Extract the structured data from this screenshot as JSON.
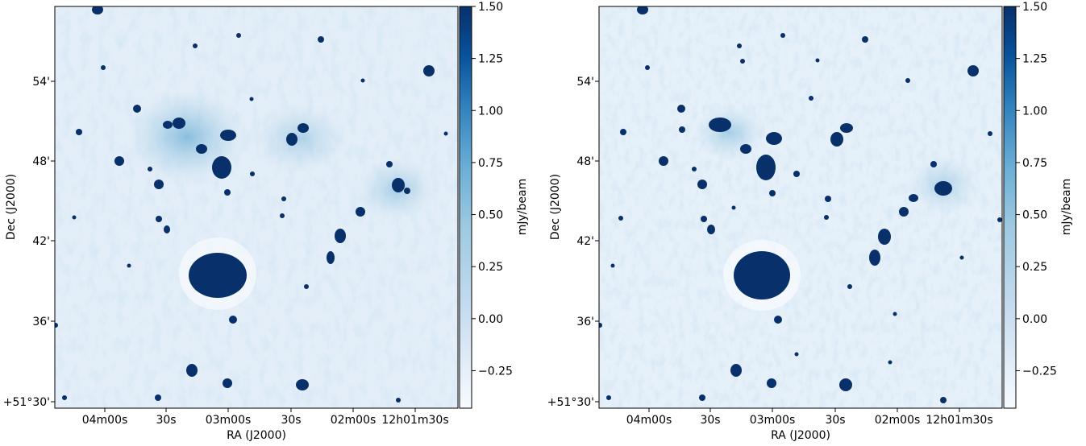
{
  "panels": [
    {
      "id": "left",
      "xlabel": "RA (J2000)",
      "ylabel": "Dec (J2000)",
      "x_ticks": [
        "04m00s",
        "30s",
        "03m00s",
        "30s",
        "02m00s",
        "12h01m30s"
      ],
      "y_ticks": [
        "+51°30'",
        "36'",
        "42'",
        "48'",
        "54'"
      ],
      "colorbar": {
        "label": "mJy/beam",
        "ticks": [
          "1.50",
          "1.25",
          "1.00",
          "0.75",
          "0.50",
          "0.25",
          "0.00",
          "−0.25"
        ],
        "tick_values": [
          1.5,
          1.25,
          1.0,
          0.75,
          0.5,
          0.25,
          0.0,
          -0.25
        ],
        "range": [
          -0.43,
          1.5
        ]
      }
    },
    {
      "id": "right",
      "xlabel": "RA (J2000)",
      "ylabel": "Dec (J2000)",
      "x_ticks": [
        "04m00s",
        "30s",
        "03m00s",
        "30s",
        "02m00s",
        "12h01m30s"
      ],
      "y_ticks": [
        "+51°30'",
        "36'",
        "42'",
        "48'",
        "54'"
      ],
      "colorbar": {
        "label": "mJy/beam",
        "ticks": [
          "1.50",
          "1.25",
          "1.00",
          "0.75",
          "0.50",
          "0.25",
          "0.00",
          "−0.25"
        ],
        "tick_values": [
          1.5,
          1.25,
          1.0,
          0.75,
          0.5,
          0.25,
          0.0,
          -0.25
        ],
        "range": [
          -0.43,
          1.5
        ]
      }
    }
  ],
  "colors": {
    "colormap_high": "#08306b",
    "colormap_mid": "#6baed6",
    "colormap_low": "#f7fbff",
    "background_field": "#e4eef8"
  }
}
